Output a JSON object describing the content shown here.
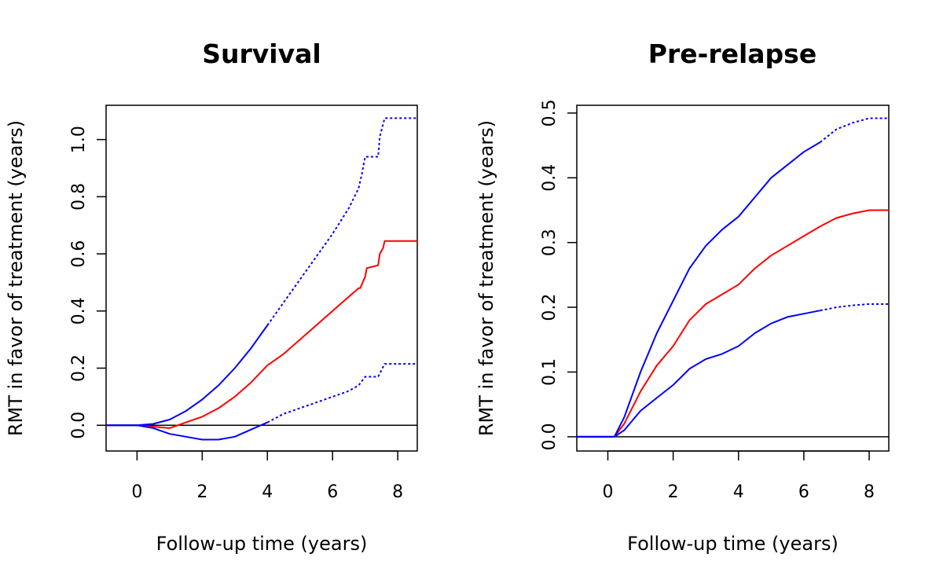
{
  "chart_data": [
    {
      "type": "line",
      "title": "Survival",
      "xlabel": "Follow-up time (years)",
      "ylabel": "RMT in favor of treatment (years)",
      "xlim": [
        -0.95,
        8.6
      ],
      "ylim": [
        -0.09,
        1.12
      ],
      "xticks": [
        0,
        2,
        4,
        6,
        8
      ],
      "xtick_labels": [
        "0",
        "2",
        "4",
        "6",
        "8"
      ],
      "yticks": [
        0,
        0.2,
        0.4,
        0.6,
        0.8,
        1.0
      ],
      "ytick_labels": [
        "0.0",
        "0.2",
        "0.4",
        "0.6",
        "0.8",
        "1.0"
      ],
      "hline": 0,
      "grid": false,
      "series": [
        {
          "role": "estimate",
          "color": "#ff0000",
          "style": "solid",
          "x": [
            -0.95,
            0,
            0.5,
            1.0,
            1.5,
            2.0,
            2.5,
            3.0,
            3.5,
            4.0,
            4.5,
            5.0,
            5.5,
            6.0,
            6.5,
            6.8,
            6.85,
            7.0,
            7.05,
            7.4,
            7.45,
            7.55,
            7.6,
            8.6
          ],
          "y": [
            0,
            0,
            -0.005,
            -0.01,
            0.01,
            0.03,
            0.06,
            0.1,
            0.15,
            0.21,
            0.25,
            0.3,
            0.35,
            0.4,
            0.45,
            0.48,
            0.48,
            0.52,
            0.55,
            0.56,
            0.6,
            0.62,
            0.645,
            0.645
          ]
        },
        {
          "role": "upper",
          "color": "#0000ff",
          "style": "solid",
          "x": [
            -0.95,
            0,
            0.5,
            1.0,
            1.5,
            2.0,
            2.5,
            3.0,
            3.5,
            4.0
          ],
          "y": [
            0,
            0,
            0.005,
            0.02,
            0.05,
            0.09,
            0.14,
            0.2,
            0.27,
            0.35
          ]
        },
        {
          "role": "upper",
          "color": "#0000ff",
          "style": "dashed",
          "x": [
            4.0,
            4.5,
            5.0,
            5.5,
            6.0,
            6.5,
            6.8,
            6.9,
            7.0,
            7.4,
            7.45,
            7.6,
            8.6
          ],
          "y": [
            0.35,
            0.43,
            0.51,
            0.59,
            0.67,
            0.76,
            0.83,
            0.88,
            0.94,
            0.94,
            1.01,
            1.075,
            1.075
          ]
        },
        {
          "role": "lower",
          "color": "#0000ff",
          "style": "solid",
          "x": [
            -0.95,
            0,
            0.5,
            1.0,
            1.5,
            2.0,
            2.5,
            3.0,
            3.5,
            4.0
          ],
          "y": [
            0,
            0,
            -0.01,
            -0.03,
            -0.04,
            -0.05,
            -0.05,
            -0.04,
            -0.015,
            0.01
          ]
        },
        {
          "role": "lower",
          "color": "#0000ff",
          "style": "dashed",
          "x": [
            4.0,
            4.5,
            5.0,
            5.5,
            6.0,
            6.5,
            6.8,
            7.0,
            7.4,
            7.6,
            8.6
          ],
          "y": [
            0.01,
            0.04,
            0.06,
            0.08,
            0.1,
            0.12,
            0.14,
            0.17,
            0.17,
            0.215,
            0.215
          ]
        }
      ]
    },
    {
      "type": "line",
      "title": "Pre-relapse",
      "xlabel": "Follow-up time (years)",
      "ylabel": "RMT in favor of treatment (years)",
      "xlim": [
        -0.95,
        8.6
      ],
      "ylim": [
        -0.022,
        0.512
      ],
      "xticks": [
        0,
        2,
        4,
        6,
        8
      ],
      "xtick_labels": [
        "0",
        "2",
        "4",
        "6",
        "8"
      ],
      "yticks": [
        0,
        0.1,
        0.2,
        0.3,
        0.4,
        0.5
      ],
      "ytick_labels": [
        "0.0",
        "0.1",
        "0.2",
        "0.3",
        "0.4",
        "0.5"
      ],
      "hline": 0,
      "grid": false,
      "series": [
        {
          "role": "estimate",
          "color": "#ff0000",
          "style": "solid",
          "x": [
            -0.95,
            0,
            0.2,
            0.5,
            1.0,
            1.5,
            2.0,
            2.5,
            3.0,
            3.5,
            4.0,
            4.5,
            5.0,
            5.5,
            6.0,
            6.5,
            7.0,
            7.5,
            8.0,
            8.6
          ],
          "y": [
            0,
            0,
            0,
            0.02,
            0.07,
            0.11,
            0.14,
            0.18,
            0.205,
            0.22,
            0.235,
            0.26,
            0.28,
            0.295,
            0.31,
            0.325,
            0.338,
            0.345,
            0.35,
            0.35
          ]
        },
        {
          "role": "upper",
          "color": "#0000ff",
          "style": "solid",
          "x": [
            -0.95,
            0,
            0.2,
            0.5,
            1.0,
            1.5,
            2.0,
            2.5,
            3.0,
            3.5,
            4.0,
            4.5,
            5.0,
            5.5,
            6.0,
            6.5
          ],
          "y": [
            0,
            0,
            0,
            0.03,
            0.1,
            0.16,
            0.21,
            0.26,
            0.295,
            0.32,
            0.34,
            0.37,
            0.4,
            0.42,
            0.44,
            0.455
          ]
        },
        {
          "role": "upper",
          "color": "#0000ff",
          "style": "dashed",
          "x": [
            6.5,
            7.0,
            7.5,
            8.0,
            8.6
          ],
          "y": [
            0.455,
            0.475,
            0.485,
            0.492,
            0.492
          ]
        },
        {
          "role": "lower",
          "color": "#0000ff",
          "style": "solid",
          "x": [
            -0.95,
            0,
            0.2,
            0.5,
            1.0,
            1.5,
            2.0,
            2.5,
            3.0,
            3.5,
            4.0,
            4.5,
            5.0,
            5.5,
            6.0,
            6.5
          ],
          "y": [
            0,
            0,
            0,
            0.01,
            0.04,
            0.06,
            0.08,
            0.105,
            0.12,
            0.128,
            0.14,
            0.16,
            0.175,
            0.185,
            0.19,
            0.195
          ]
        },
        {
          "role": "lower",
          "color": "#0000ff",
          "style": "dashed",
          "x": [
            6.5,
            7.0,
            7.5,
            8.0,
            8.6
          ],
          "y": [
            0.195,
            0.2,
            0.203,
            0.205,
            0.205
          ]
        }
      ]
    }
  ]
}
